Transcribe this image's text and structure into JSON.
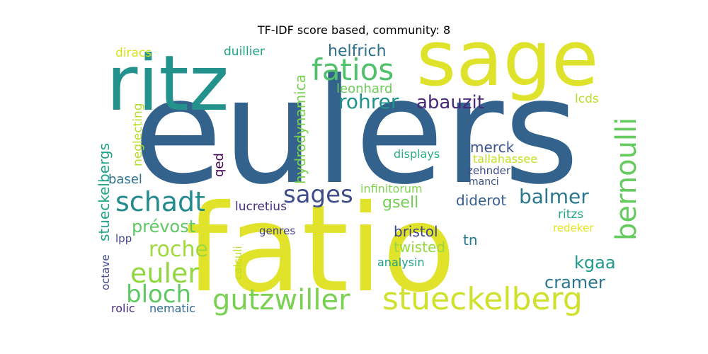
{
  "title": "TF-IDF score based, community: 8",
  "words": [
    {
      "text": "eulers",
      "color": "#33638d"
    },
    {
      "text": "fatio",
      "color": "#e0e32a"
    },
    {
      "text": "sage",
      "color": "#dfe22a"
    },
    {
      "text": "ritz",
      "color": "#23928c"
    },
    {
      "text": "fatios",
      "color": "#4fc16b"
    },
    {
      "text": "stueckelberg",
      "color": "#cfe12c"
    },
    {
      "text": "gutzwiller",
      "color": "#7ad151"
    },
    {
      "text": "schadt",
      "color": "#238a8d"
    },
    {
      "text": "bernoulli",
      "color": "#65cb5e"
    },
    {
      "text": "euler",
      "color": "#92d742"
    },
    {
      "text": "bloch",
      "color": "#5ec962"
    },
    {
      "text": "roche",
      "color": "#9fda3a"
    },
    {
      "text": "sages",
      "color": "#3e4c8a"
    },
    {
      "text": "balmer",
      "color": "#2a788e"
    },
    {
      "text": "rohrer",
      "color": "#21918c"
    },
    {
      "text": "abauzit",
      "color": "#482878"
    },
    {
      "text": "helfrich",
      "color": "#2d708e"
    },
    {
      "text": "prévost",
      "color": "#5ec962"
    },
    {
      "text": "kgaa",
      "color": "#1f998a"
    },
    {
      "text": "cramer",
      "color": "#2b758e"
    },
    {
      "text": "hydrodynamica",
      "color": "#7ad151"
    },
    {
      "text": "stueckelbergs",
      "color": "#20a386"
    },
    {
      "text": "diderot",
      "color": "#355f8d"
    },
    {
      "text": "merck",
      "color": "#3b528b"
    },
    {
      "text": "gsell",
      "color": "#73d055"
    },
    {
      "text": "bristol",
      "color": "#404588"
    },
    {
      "text": "twisted",
      "color": "#95d840"
    },
    {
      "text": "leonhard",
      "color": "#6ccd5a"
    },
    {
      "text": "lcds",
      "color": "#b5de2b"
    },
    {
      "text": "diracs",
      "color": "#d8e219"
    },
    {
      "text": "duillier",
      "color": "#20a386"
    },
    {
      "text": "neglecting",
      "color": "#b8de29"
    },
    {
      "text": "basel",
      "color": "#2c728e"
    },
    {
      "text": "qed",
      "color": "#440154"
    },
    {
      "text": "displays",
      "color": "#29af7f"
    },
    {
      "text": "tallahassee",
      "color": "#c2df23"
    },
    {
      "text": "zehnder",
      "color": "#3e4a89"
    },
    {
      "text": "manci",
      "color": "#3b528b"
    },
    {
      "text": "infinitorum",
      "color": "#7fd34e"
    },
    {
      "text": "lucretius",
      "color": "#46327e"
    },
    {
      "text": "ritzs",
      "color": "#22a785"
    },
    {
      "text": "redeker",
      "color": "#e5e419"
    },
    {
      "text": "lpp",
      "color": "#414487"
    },
    {
      "text": "genres",
      "color": "#424086"
    },
    {
      "text": "tn",
      "color": "#287c8e"
    },
    {
      "text": "octave",
      "color": "#3f4889"
    },
    {
      "text": "calculi",
      "color": "#bddf26"
    },
    {
      "text": "analysin",
      "color": "#1fa088"
    },
    {
      "text": "rolic",
      "color": "#472d7b"
    },
    {
      "text": "nematic",
      "color": "#31678e"
    }
  ]
}
